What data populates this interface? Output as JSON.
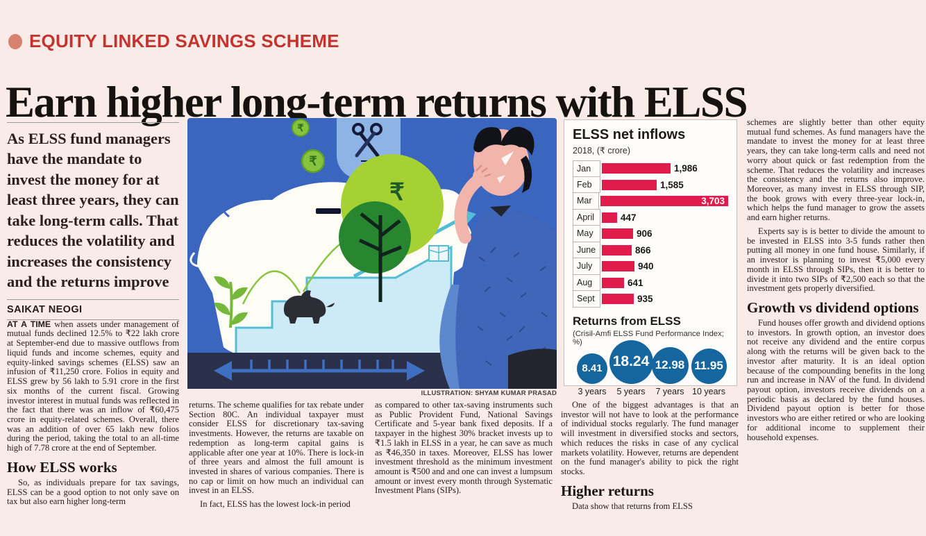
{
  "page": {
    "background": "#f8ebe8",
    "accent_red": "#c4342f",
    "bar_color": "#e11c4d",
    "circle_color": "#15659f"
  },
  "kicker": {
    "label": "EQUITY LINKED SAVINGS SCHEME"
  },
  "headline": "Earn higher long-term returns with ELSS",
  "left_column": {
    "intro": "As ELSS fund managers have the mandate to invest the money for at least three years, they can take long-term calls. That reduces the volatility and increases the consistency and the returns improve",
    "byline": "SAIKAT NEOGI",
    "lede_prefix": "AT A TIME ",
    "para1": "when assets under management of mutual funds declined 12.5% to ₹22 lakh crore at September-end due to massive outflows from liquid funds and income schemes, equity and equity-linked savings schemes (ELSS) saw an infusion of ₹11,250 crore. Folios in equity and ELSS grew by 56 lakh to 5.91 crore in the first six months of the current fiscal. Growing investor interest in mutual funds was reflected in the fact that there was an inflow of ₹60,475 crore in equity-related schemes. Overall, there was an addition of over 65 lakh new folios during the period, taking the total to an all-time high of 7.78 crore at the end of September.",
    "subhead": "How ELSS works",
    "para2": "So, as individuals prepare for tax savings, ELSS can be a good option to not only save on tax but also earn higher long-term"
  },
  "illustration": {
    "credit": "ILLUSTRATION: SHYAM KUMAR PRASAD"
  },
  "chart_data": {
    "type": "bar",
    "title": "ELSS net inflows",
    "subtitle": "2018, (₹ crore)",
    "categories": [
      "Jan",
      "Feb",
      "Mar",
      "April",
      "May",
      "June",
      "July",
      "Aug",
      "Sept"
    ],
    "values": [
      1986,
      1585,
      3703,
      447,
      906,
      866,
      940,
      641,
      935
    ],
    "value_labels": [
      "1,986",
      "1,585",
      "3,703",
      "447",
      "906",
      "866",
      "940",
      "641",
      "935"
    ],
    "xlim": [
      0,
      3703
    ],
    "orientation": "horizontal",
    "bar_color": "#e11c4d"
  },
  "returns_panel": {
    "title": "Returns from ELSS",
    "subtitle": "(Crisil-Amfi ELSS Fund Performance Index; %)",
    "items": [
      {
        "value": "8.41",
        "label": "3 years"
      },
      {
        "value": "18.24",
        "label": "5 years"
      },
      {
        "value": "12.98",
        "label": "7 years"
      },
      {
        "value": "11.95",
        "label": "10 years"
      }
    ]
  },
  "col2": {
    "para1": "returns. The scheme qualifies for tax rebate under Section 80C. An individual taxpayer must consider ELSS for discretionary tax-saving investments. However, the returns are taxable on redemption as long-term capital gains is applicable after one year at 10%. There is lock-in of three years and almost the full amount is invested in shares of various companies. There is no cap or limit on how much an individual can invest in an ELSS.",
    "para2": "In fact, ELSS has the lowest lock-in period"
  },
  "col3": {
    "para1": "as compared to other tax-saving instruments such as Public Provident Fund, National Savings Certificate and 5-year bank fixed deposits. If a taxpayer in the highest 30% bracket invests up to ₹1.5 lakh in ELSS in a year, he can save as much as ₹46,350 in taxes. Moreover, ELSS has lower investment threshold as the minimum investment amount is ₹500 and and one can invest a lumpsum amount or invest every month through Systematic Investment Plans (SIPs)."
  },
  "col4": {
    "para1": "One of the biggest advantages is that an investor will not have to look at the performance of individual stocks regularly. The fund manager will investment in diversified stocks and sectors, which reduces the risks in case of any cyclical markets volatility. However, returns are dependent on the fund manager's ability to pick the right stocks.",
    "subhead": "Higher returns",
    "para2": "Data show that returns from ELSS"
  },
  "col5": {
    "para1": "schemes are slightly better than other equity mutual fund schemes. As fund managers have the mandate to invest the money for at least three years, they can take long-term calls and need not worry about quick or fast redemption from the scheme. That reduces the volatility and increases the consistency and the returns also improve. Moreover, as many invest in ELSS through SIP, the book grows with every three-year lock-in, which helps the fund manager to grow the assets and earn higher returns.",
    "para2": "Experts say is is better to divide the amount to be invested in ELSS into 3-5 funds rather then putting all money in one fund house. Similarly, if an investor is planning to invest ₹5,000 every month in ELSS through SIPs, then it is better to divide it into two SIPs of ₹2,500 each so that the investment gets properly diversified.",
    "subhead": "Growth vs dividend options",
    "para3": "Fund houses offer growth and dividend options to investors. In growth option, an investor does not receive any dividend and the entire corpus along with the returns will be given back to the investor after maturity. It is an ideal option because of the compounding benefits in the long run and increase in NAV of the fund. In dividend payout option, investors receive dividends on a periodic basis as declared by the fund houses. Dividend payout option is better for those investors who are either retired or who are looking for additional income to supplement their household expenses."
  }
}
